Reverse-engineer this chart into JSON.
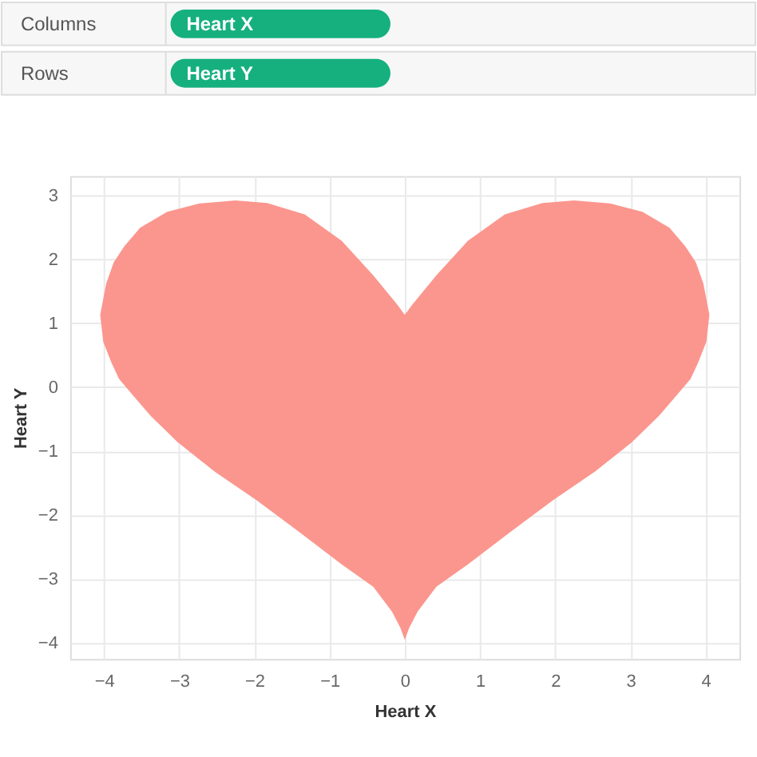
{
  "chart_data": [
    {
      "type": "other",
      "annotations": [
        "Columns",
        "Heart X",
        "Rows",
        "Heart Y"
      ]
    },
    {
      "type": "area",
      "xlabel": "Heart X",
      "ylabel": "Heart Y",
      "series": [
        {
          "color": "#fb968e",
          "x": [
            -4.05,
            -3.97,
            -3.87,
            -3.73,
            -3.52,
            -3.16,
            -2.74,
            -2.25,
            -1.83,
            -1.33,
            -0.84,
            -0.42,
            -0.1,
            0,
            0.1,
            0.42,
            0.84,
            1.33,
            1.83,
            2.25,
            2.74,
            3.16,
            3.52,
            3.73,
            3.87,
            3.97,
            4.05,
            4.01,
            3.9,
            3.8,
            3.62,
            3.38,
            3.02,
            2.53,
            1.97,
            1.4,
            0.84,
            0.42,
            0.17,
            0.06,
            0,
            -0.06,
            -0.17,
            -0.42,
            -0.84,
            -1.4,
            -1.97,
            -2.53,
            -3.02,
            -3.38,
            -3.62,
            -3.8,
            -3.9,
            -4.01
          ],
          "values": [
            1.13,
            1.62,
            1.95,
            2.2,
            2.49,
            2.74,
            2.87,
            2.92,
            2.88,
            2.7,
            2.29,
            1.75,
            1.29,
            1.13,
            1.29,
            1.75,
            2.29,
            2.7,
            2.88,
            2.92,
            2.87,
            2.74,
            2.49,
            2.2,
            1.95,
            1.62,
            1.13,
            0.71,
            0.38,
            0.13,
            -0.12,
            -0.45,
            -0.86,
            -1.32,
            -1.77,
            -2.27,
            -2.77,
            -3.12,
            -3.51,
            -3.76,
            -3.95,
            -3.76,
            -3.51,
            -3.12,
            -2.77,
            -2.27,
            -1.77,
            -1.32,
            -0.86,
            -0.45,
            -0.12,
            0.13,
            0.38,
            0.71
          ]
        }
      ],
      "xlim": [
        -4.45,
        4.45
      ],
      "ylim": [
        -4.25,
        3.3
      ],
      "xticks": [
        -4,
        -3,
        -2,
        -1,
        0,
        1,
        2,
        3,
        4
      ],
      "yticks": [
        -4,
        -3,
        -2,
        -1,
        0,
        1,
        2,
        3
      ],
      "grid": true
    }
  ]
}
